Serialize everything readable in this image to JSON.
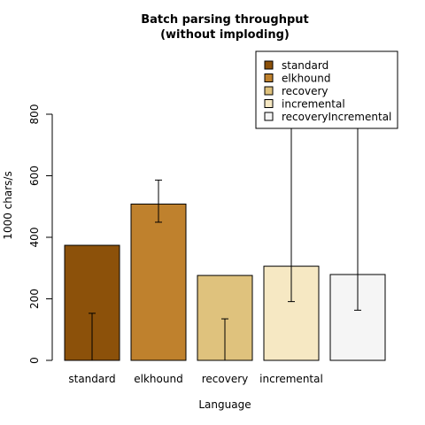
{
  "chart_data": {
    "type": "bar",
    "title": [
      "Batch parsing throughput",
      "(without imploding)"
    ],
    "xlabel": "Language",
    "ylabel": "1000 chars/s",
    "ylim": [
      0,
      800
    ],
    "yticks": [
      0,
      200,
      400,
      600,
      800
    ],
    "categories": [
      "standard",
      "elkhound",
      "recovery",
      "incremental",
      ""
    ],
    "series": [
      {
        "values": [
          374,
          508,
          276,
          306,
          279
        ],
        "error_low": [
          0,
          449,
          0,
          191,
          163
        ],
        "error_high": [
          153,
          586,
          135,
          766,
          992
        ]
      }
    ],
    "colors": [
      "#8C510A",
      "#BF812D",
      "#DFC27D",
      "#F6E8C3",
      "#F5F5F5"
    ],
    "legend": {
      "position": "top-right",
      "entries": [
        "standard",
        "elkhound",
        "recovery",
        "incremental",
        "recoveryIncremental"
      ]
    },
    "grid": false
  }
}
